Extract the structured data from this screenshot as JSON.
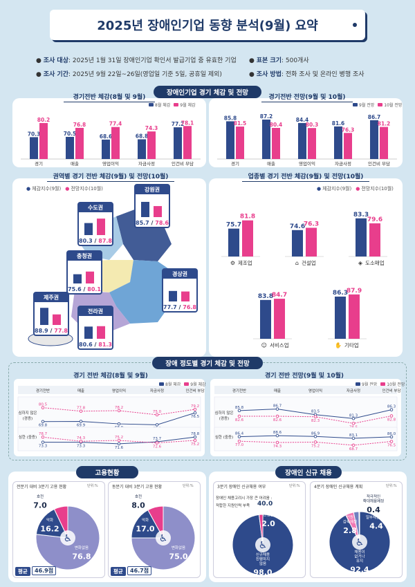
{
  "title": "2025년 장애인기업 동향 분석(9월) 요약",
  "info": {
    "target_label": "조사 대상",
    "target": ": 2025년 1월 31일 장애인기업 확인서 발급기업 중 유효한 기업",
    "sample_label": "표본 크기",
    "sample": ": 500개사",
    "period_label": "조사 기간",
    "period": ": 2025년 9월 22일~26일(영업일 기준 5일, 공휴일 제외)",
    "method_label": "조사 방법",
    "method": ": 전화 조사 및 온라인 병행 조사"
  },
  "section1": "장애인기업 경기 체감 및 전망",
  "section2": "장애 정도별 경기 체감 및 전망",
  "section3": "고용현황",
  "section4": "장애인 신규 채용",
  "colors": {
    "navy": "#2e4a8b",
    "pink": "#e83e8c"
  },
  "chart_data": [
    {
      "id": "c1",
      "type": "bar",
      "title": "경기전반 체감(8월 및 9월)",
      "categories": [
        "경기",
        "매출",
        "영업이익",
        "자금사정",
        "인건비 부담"
      ],
      "series": [
        {
          "name": "8월 체감",
          "values": [
            70.3,
            70.5,
            68.6,
            68.8,
            77.2
          ]
        },
        {
          "name": "9월 체감",
          "values": [
            80.2,
            76.8,
            77.4,
            74.3,
            78.1
          ]
        }
      ],
      "ylim": [
        55,
        85
      ]
    },
    {
      "id": "c2",
      "type": "bar",
      "title": "경기전반 전망(9월 및 10월)",
      "categories": [
        "경기",
        "매출",
        "영업이익",
        "자금사정",
        "인건비 부담"
      ],
      "series": [
        {
          "name": "9월 전망",
          "values": [
            85.8,
            87.2,
            84.4,
            81.6,
            86.7
          ]
        },
        {
          "name": "10월 전망",
          "values": [
            81.5,
            80.4,
            80.3,
            76.3,
            81.2
          ]
        }
      ],
      "ylim": [
        55,
        90
      ]
    },
    {
      "id": "c3",
      "type": "bar",
      "title": "권역별 경기 전반 체감(9월) 및 전망(10월)",
      "categories": [
        "수도권",
        "강원권",
        "충청권",
        "경상권",
        "제주권",
        "전라권"
      ],
      "series": [
        {
          "name": "체감지수(9월)",
          "values": [
            80.3,
            85.7,
            75.6,
            77.7,
            88.9,
            80.6
          ]
        },
        {
          "name": "전망지수(10월)",
          "values": [
            87.8,
            78.6,
            80.1,
            76.8,
            77.8,
            81.3
          ]
        }
      ],
      "ylim": [
        60,
        95
      ]
    },
    {
      "id": "c4",
      "type": "bar",
      "title": "업종별 경기 전반 체감(9월) 및 전망(10월)",
      "categories": [
        "제조업",
        "건설업",
        "도소매업",
        "서비스업",
        "기타업"
      ],
      "series": [
        {
          "name": "체감지수(9월)",
          "values": [
            75.7,
            74.6,
            83.3,
            83.8,
            86.3
          ]
        },
        {
          "name": "전망지수(10월)",
          "values": [
            81.8,
            76.3,
            79.6,
            84.7,
            87.9
          ]
        }
      ],
      "ylim": [
        55,
        95
      ]
    },
    {
      "id": "c5",
      "type": "line",
      "title": "경기 전반 체감(8월 및 9월)",
      "categories": [
        "경기전반",
        "매출",
        "영업이익",
        "자금사정",
        "인건비 부담"
      ],
      "groups": [
        {
          "label": "심하지 않은 (경증)",
          "series": [
            {
              "name": "8월 체감",
              "values": [
                69.8,
                69.9,
                68.0,
                67.3,
                76.5
              ]
            },
            {
              "name": "9월 체감",
              "values": [
                80.5,
                77.8,
                78.2,
                75.0,
                79.2
              ]
            }
          ]
        },
        {
          "label": "심한 (중증)",
          "series": [
            {
              "name": "8월 체감",
              "values": [
                73.3,
                73.3,
                71.6,
                73.7,
                78.8
              ]
            },
            {
              "name": "9월 체감",
              "values": [
                78.7,
                74.3,
                75.2,
                72.6,
                75.2
              ]
            }
          ]
        }
      ]
    },
    {
      "id": "c6",
      "type": "line",
      "title": "경기 전반 전망(9월 및 10월)",
      "categories": [
        "경기전반",
        "매출",
        "영업이익",
        "자금사정",
        "인건비 부담"
      ],
      "groups": [
        {
          "label": "심하지 않은 (경증)",
          "series": [
            {
              "name": "9월 전망",
              "values": [
                85.8,
                86.7,
                83.5,
                81.3,
                86.3
              ]
            },
            {
              "name": "10월 전망",
              "values": [
                82.6,
                82.6,
                82.3,
                78.5,
                82.8
              ]
            }
          ]
        },
        {
          "label": "심한 (중증)",
          "series": [
            {
              "name": "9월 전망",
              "values": [
                86.4,
                88.6,
                86.9,
                83.1,
                86.0
              ]
            },
            {
              "name": "10월 전망",
              "values": [
                77.0,
                74.3,
                75.2,
                68.7,
                76.5
              ]
            }
          ]
        }
      ]
    },
    {
      "id": "p1",
      "type": "pie",
      "title": "전분기 대비 3분기 고용 현황",
      "unit": "단위:%",
      "slices": [
        {
          "label": "변화없음",
          "value": 76.8
        },
        {
          "label": "악화",
          "value": 16.2
        },
        {
          "label": "호전",
          "value": 7.0
        }
      ],
      "avg_label": "평균",
      "avg": "46.9점"
    },
    {
      "id": "p2",
      "type": "pie",
      "title": "동분기 대비 3분기 고용 현황",
      "unit": "단위:%",
      "slices": [
        {
          "label": "변화없음",
          "value": 75.0
        },
        {
          "label": "악화",
          "value": 17.0
        },
        {
          "label": "호전",
          "value": 8.0
        }
      ],
      "avg_label": "평균",
      "avg": "46.7점"
    },
    {
      "id": "p3",
      "type": "pie",
      "title": "3분기 장애인 신규채용 여부",
      "unit": "단위:%",
      "slices": [
        {
          "label": "신규채용 진행하지 않음",
          "value": 98.0
        },
        {
          "label": "신규채용 진행함",
          "value": 2.0
        }
      ],
      "note1": "장애인 채용고려시 가장 큰 어려움 :",
      "note2": "적합한 지원인력 부족",
      "note_value": "40.0"
    },
    {
      "id": "p4",
      "type": "pie",
      "title": "4분기 장애인 신규채용 계획",
      "unit": "단위:%",
      "slices": [
        {
          "label": "채용이 없거나 유지",
          "value": 92.4
        },
        {
          "label": "일부채용예정",
          "value": 4.4
        },
        {
          "label": "인원 감축예정",
          "value": 2.8
        },
        {
          "label": "적극적인 확대채용예정",
          "value": 0.4
        }
      ]
    }
  ]
}
